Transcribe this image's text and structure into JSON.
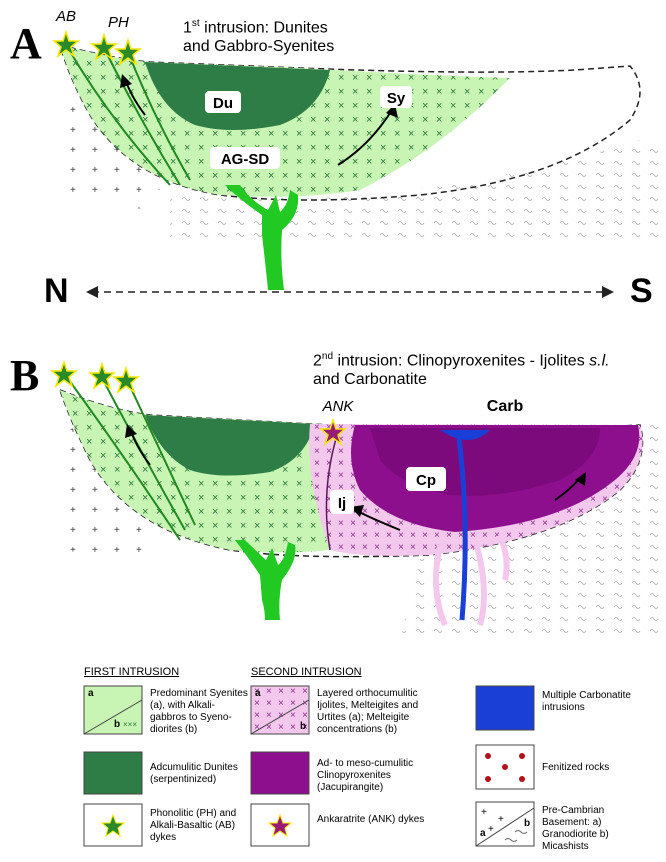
{
  "panel_a": {
    "letter": "A",
    "title_num": "1",
    "title_sup": "st",
    "title_rest": " intrusion: Dunites",
    "title_line2": "and Gabbro-Syenites",
    "labels": {
      "ab": "AB",
      "ph": "PH",
      "du": "Du",
      "sy": "Sy",
      "agsd": "AG-SD"
    },
    "direction_left": "N",
    "direction_right": "S"
  },
  "panel_b": {
    "letter": "B",
    "title_num": "2",
    "title_sup": "nd",
    "title_rest": " intrusion: Clinopyroxenites - Ijolites ",
    "title_italic": "s.l.",
    "title_line2": "and Carbonatite",
    "labels": {
      "ank": "ANK",
      "carb": "Carb",
      "cp": "Cp",
      "ij": "Ij"
    }
  },
  "legend": {
    "first_header": "FIRST INTRUSION",
    "second_header": "SECOND INTRUSION",
    "items": {
      "syenites": {
        "text": "Predominant Syenites (a), with Alkali-gabbros to Syeno-diorites (b)",
        "a": "a",
        "b": "b"
      },
      "dunites": {
        "text": "Adcumulitic Dunites (serpentinized)"
      },
      "ph_ab": {
        "text": "Phonolitic (PH) and Alkali-Basaltic (AB) dykes"
      },
      "ijolites": {
        "text": "Layered orthocumulitic Ijolites, Melteigites and Urtites (a); Melteigite concentrations (b)",
        "a": "a",
        "b": "b"
      },
      "clinopyroxenites": {
        "text": "Ad- to meso-cumulitic Clinopyroxenites (Jacupirangite)"
      },
      "ank": {
        "text": "Ankaratrite (ANK) dykes"
      },
      "carbonatite": {
        "text": "Multiple Carbonatite intrusions"
      },
      "fenitized": {
        "text": "Fenitized rocks"
      },
      "basement": {
        "text": "Pre-Cambrian Basement: a) Granodiorite b) Micashists",
        "a": "a",
        "b": "b"
      }
    }
  },
  "colors": {
    "light_green": "#c8f5b4",
    "mid_green": "#33b833",
    "dark_green": "#2e7d46",
    "dyke_green": "#22c922",
    "pink": "#f3c8ec",
    "purple": "#8e0f8e",
    "blue": "#1a3fd6",
    "fenite_red": "#b0121a"
  }
}
